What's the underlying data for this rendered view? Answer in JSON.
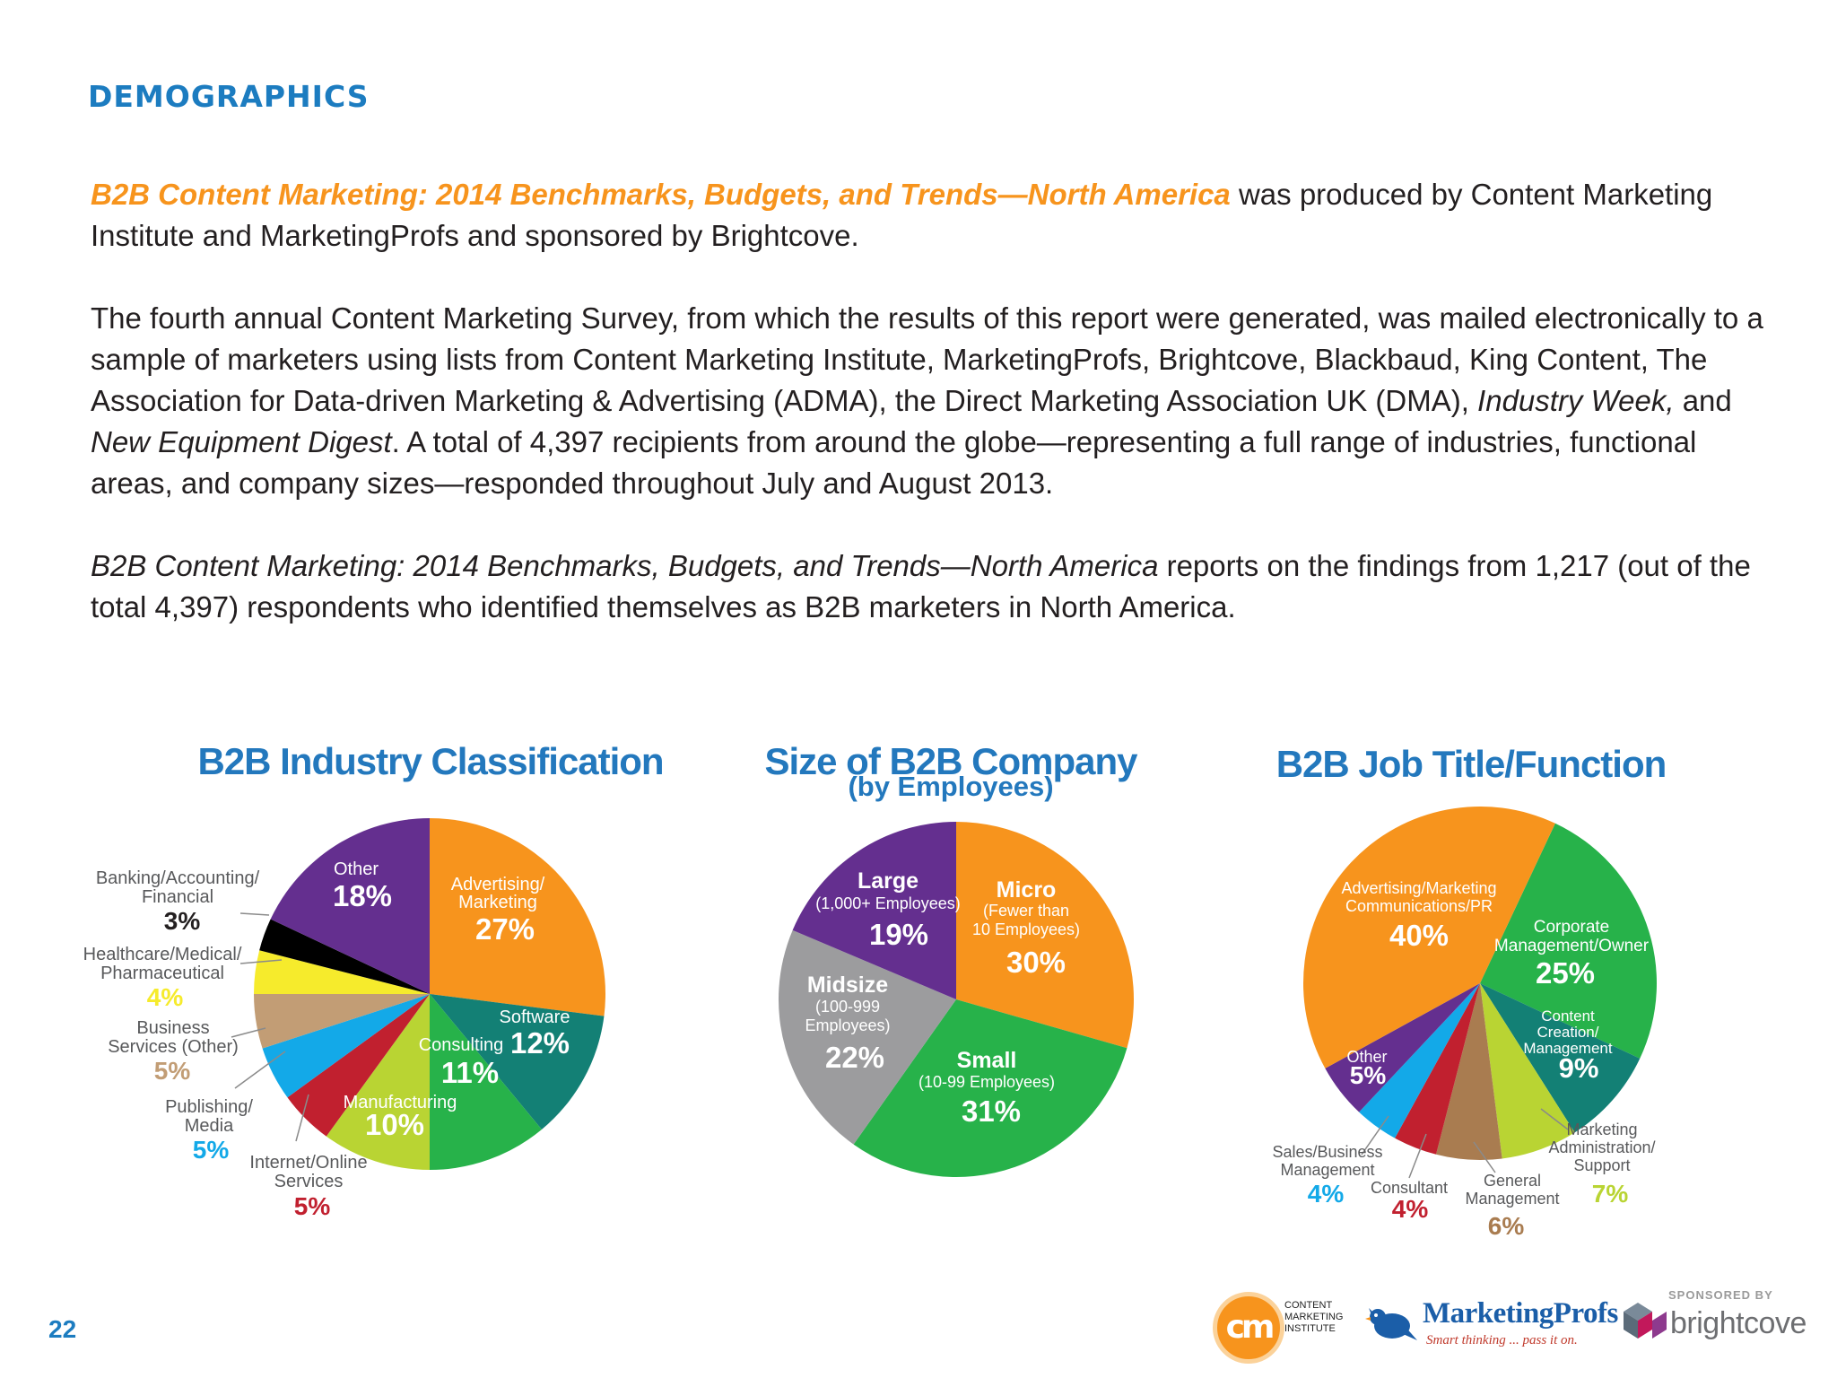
{
  "section_label": "DEMOGRAPHICS",
  "page_number": "22",
  "intro": {
    "p1_title": "B2B Content Marketing: 2014 Benchmarks, Budgets, and Trends—North America",
    "p1_rest": " was produced by Content Marketing Institute and MarketingProfs and sponsored by Brightcove.",
    "p2_a": "The fourth annual Content Marketing Survey, from which the results of this report were generated, was mailed electronically to a sample of marketers using lists from Content Marketing Institute, MarketingProfs, Brightcove, Blackbaud, King Content, The Association for Data-driven Marketing & Advertising (ADMA), the Direct Marketing Association UK (DMA), ",
    "p2_pub1": "Industry Week,",
    "p2_b": " and ",
    "p2_pub2": "New Equipment Digest",
    "p2_c": ". A total of 4,397 recipients from around the globe—representing a full range of industries, functional areas, and company sizes—responded throughout July and August 2013.",
    "p3_title": "B2B Content Marketing: 2014 Benchmarks, Budgets, and Trends—North America",
    "p3_rest": " reports on the findings from 1,217 (out of the total 4,397) respondents who identified themselves as B2B marketers in North America."
  },
  "chart_data": [
    {
      "type": "pie",
      "title": "B2B Industry Classification",
      "slices": [
        {
          "label": "Advertising/ Marketing",
          "value": 27,
          "color": "#f7941d"
        },
        {
          "label": "Software",
          "value": 12,
          "color": "#138075"
        },
        {
          "label": "Consulting",
          "value": 11,
          "color": "#27b24a"
        },
        {
          "label": "Manufacturing",
          "value": 10,
          "color": "#b9d433"
        },
        {
          "label": "Internet/Online Services",
          "value": 5,
          "color": "#c1202f"
        },
        {
          "label": "Publishing/ Media",
          "value": 5,
          "color": "#13a9e8"
        },
        {
          "label": "Business Services (Other)",
          "value": 5,
          "color": "#c29d75"
        },
        {
          "label": "Healthcare/Medical/ Pharmaceutical",
          "value": 4,
          "color": "#f6eb2c"
        },
        {
          "label": "Banking/Accounting/ Financial",
          "value": 3,
          "color": "#000000"
        },
        {
          "label": "Other",
          "value": 18,
          "color": "#642f8f"
        }
      ]
    },
    {
      "type": "pie",
      "title": "Size of B2B Company",
      "subtitle": "(by Employees)",
      "slices": [
        {
          "label": "Micro",
          "sublabel": "(Fewer than 10 Employees)",
          "value": 30,
          "color": "#f7941d"
        },
        {
          "label": "Small",
          "sublabel": "(10-99 Employees)",
          "value": 31,
          "color": "#27b24a"
        },
        {
          "label": "Midsize",
          "sublabel": "(100-999 Employees)",
          "value": 22,
          "color": "#9c9c9e"
        },
        {
          "label": "Large",
          "sublabel": "(1,000+ Employees)",
          "value": 19,
          "color": "#642f8f"
        }
      ]
    },
    {
      "type": "pie",
      "title": "B2B Job Title/Function",
      "slices": [
        {
          "label": "Corporate Management/Owner",
          "value": 25,
          "color": "#27b24a"
        },
        {
          "label": "Content Creation/ Management",
          "value": 9,
          "color": "#138075"
        },
        {
          "label": "Marketing Administration/ Support",
          "value": 7,
          "color": "#b9d433"
        },
        {
          "label": "General Management",
          "value": 6,
          "color": "#a97c50"
        },
        {
          "label": "Consultant",
          "value": 4,
          "color": "#c1202f"
        },
        {
          "label": "Sales/Business Management",
          "value": 4,
          "color": "#13a9e8"
        },
        {
          "label": "Other",
          "value": 5,
          "color": "#642f8f"
        },
        {
          "label": "Advertising/Marketing Communications/PR",
          "value": 40,
          "color": "#f7941d"
        }
      ]
    }
  ],
  "pct_labels": {
    "c1": [
      "27%",
      "12%",
      "11%",
      "10%",
      "5%",
      "5%",
      "5%",
      "4%",
      "3%",
      "18%"
    ],
    "c2": [
      "30%",
      "31%",
      "22%",
      "19%"
    ],
    "c3": [
      "25%",
      "9%",
      "7%",
      "6%",
      "4%",
      "4%",
      "5%",
      "40%"
    ]
  },
  "labels": {
    "c1": {
      "adv": [
        "Advertising/",
        "Marketing"
      ],
      "software": "Software",
      "consulting": "Consulting",
      "manufacturing": "Manufacturing",
      "internet": [
        "Internet/Online",
        "Services"
      ],
      "publishing": [
        "Publishing/",
        "Media"
      ],
      "business": [
        "Business",
        "Services (Other)"
      ],
      "healthcare": [
        "Healthcare/Medical/",
        "Pharmaceutical"
      ],
      "banking": [
        "Banking/Accounting/",
        "Financial"
      ],
      "other": "Other"
    },
    "c2": {
      "large": [
        "Large",
        "(1,000+ Employees)"
      ],
      "micro": [
        "Micro",
        "(Fewer than",
        "10 Employees)"
      ],
      "midsize": [
        "Midsize",
        "(100-999",
        "Employees)"
      ],
      "small": [
        "Small",
        "(10-99 Employees)"
      ]
    },
    "c3": {
      "adv": [
        "Advertising/Marketing",
        "Communications/PR"
      ],
      "corp": [
        "Corporate",
        "Management/Owner"
      ],
      "content": [
        "Content",
        "Creation/",
        "Management"
      ],
      "other": "Other",
      "marketing": [
        "Marketing",
        "Administration/",
        "Support"
      ],
      "sales": [
        "Sales/Business",
        "Management"
      ],
      "consultant": "Consultant",
      "general": [
        "General",
        "Management"
      ]
    }
  },
  "logos": {
    "cmi_mark": "cm",
    "cmi_text": [
      "CONTENT",
      "MARKETING",
      "INSTITUTE"
    ],
    "marketingprofs": "MarketingProfs",
    "marketingprofs_tagline": "Smart thinking ... pass it on.",
    "sponsored_by": "SPONSORED BY",
    "brightcove": "brightcove"
  }
}
